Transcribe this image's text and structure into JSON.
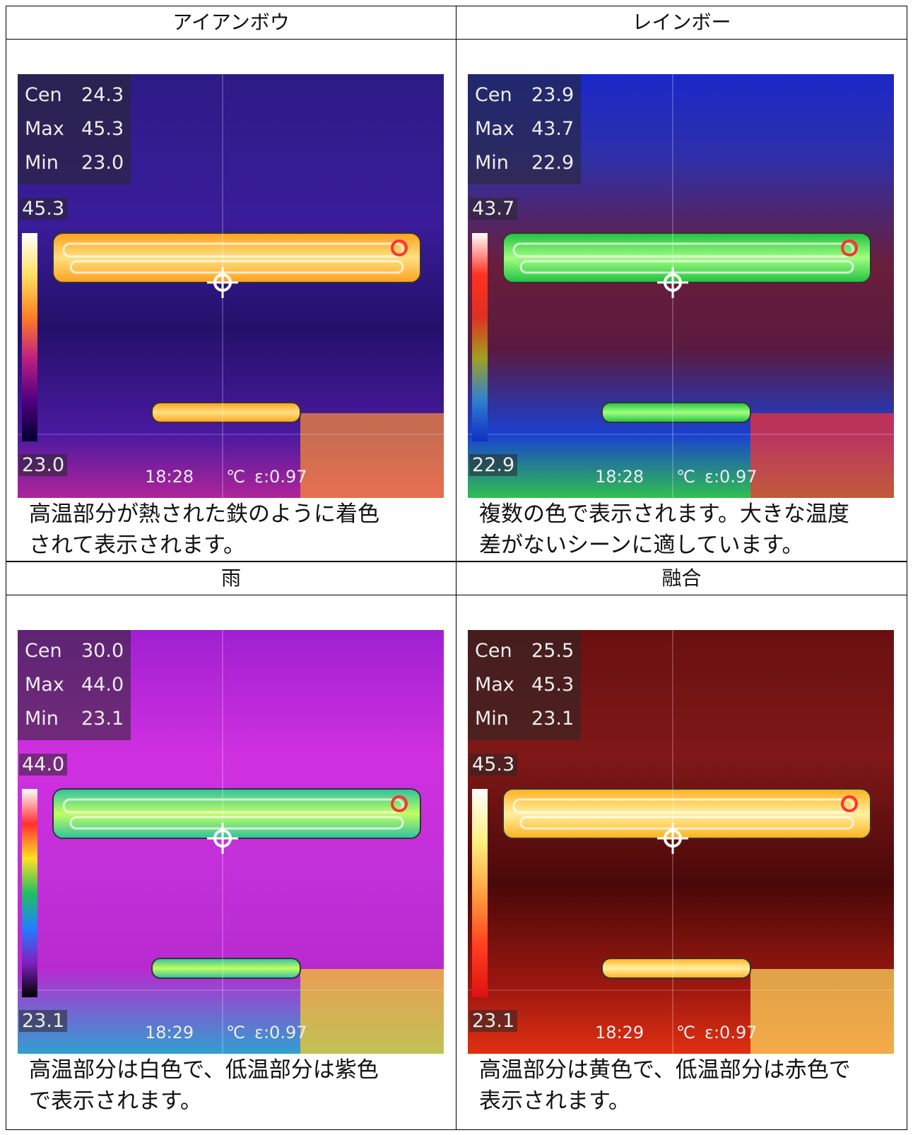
{
  "table": {
    "panels": [
      {
        "title": "アイアンボウ",
        "caption": [
          "高温部分が熱された鉄のように着色",
          "されて表示されます。"
        ],
        "readings": [
          [
            "Cen",
            "24.3"
          ],
          [
            "Max",
            "45.3"
          ],
          [
            "Min",
            "23.0"
          ]
        ],
        "scale_max": "45.3",
        "scale_min": "23.0",
        "time": "18:28",
        "unit": "℃",
        "emissivity": "ε:0.97"
      },
      {
        "title": "レインボー",
        "caption": [
          "複数の色で表示されます。大きな温度",
          "差がないシーンに適しています。"
        ],
        "readings": [
          [
            "Cen",
            "23.9"
          ],
          [
            "Max",
            "43.7"
          ],
          [
            "Min",
            "22.9"
          ]
        ],
        "scale_max": "43.7",
        "scale_min": "22.9",
        "time": "18:28",
        "unit": "℃",
        "emissivity": "ε:0.97"
      },
      {
        "title": "雨",
        "caption": [
          "高温部分は白色で、低温部分は紫色",
          "で表示されます。"
        ],
        "readings": [
          [
            "Cen",
            "30.0"
          ],
          [
            "Max",
            "44.0"
          ],
          [
            "Min",
            "23.1"
          ]
        ],
        "scale_max": "44.0",
        "scale_min": "23.1",
        "time": "18:29",
        "unit": "℃",
        "emissivity": "ε:0.97"
      },
      {
        "title": "融合",
        "caption": [
          "高温部分は黄色で、低温部分は赤色で",
          "表示されます。"
        ],
        "readings": [
          [
            "Cen",
            "25.5"
          ],
          [
            "Max",
            "45.3"
          ],
          [
            "Min",
            "23.1"
          ]
        ],
        "scale_max": "45.3",
        "scale_min": "23.1",
        "time": "18:29",
        "unit": "℃",
        "emissivity": "ε:0.97"
      }
    ]
  }
}
